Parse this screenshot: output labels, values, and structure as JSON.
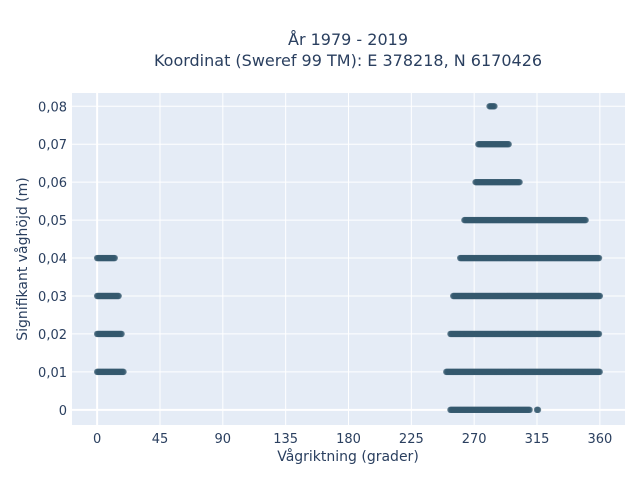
{
  "chart_data": {
    "type": "scatter",
    "title_line1": "År 1979 - 2019",
    "title_line2": "Koordinat (Sweref 99 TM): E 378218, N 6170426",
    "xlabel": "Vågriktning (grader)",
    "ylabel": "Signifikant våghöjd (m)",
    "xlim": [
      -18,
      378
    ],
    "ylim": [
      -0.004,
      0.0835
    ],
    "xticks": [
      0,
      45,
      90,
      135,
      180,
      225,
      270,
      315,
      360
    ],
    "xtick_labels": [
      "0",
      "45",
      "90",
      "135",
      "180",
      "225",
      "270",
      "315",
      "360"
    ],
    "yticks": [
      0,
      0.01,
      0.02,
      0.03,
      0.04,
      0.05,
      0.06,
      0.07,
      0.08
    ],
    "ytick_labels": [
      "0",
      "0,01",
      "0,02",
      "0,03",
      "0,04",
      "0,05",
      "0,06",
      "0,07",
      "0,08"
    ],
    "grid": true,
    "marker_color": "#34586e",
    "plot_bg": "#e5ecf6",
    "point_bands": [
      {
        "y": 0.0,
        "x_ranges": [
          [
            253,
            310
          ],
          [
            315,
            316
          ]
        ]
      },
      {
        "y": 0.01,
        "x_ranges": [
          [
            0,
            19
          ],
          [
            250,
            360
          ]
        ]
      },
      {
        "y": 0.02,
        "x_ranges": [
          [
            0,
            18
          ],
          [
            253,
            360
          ]
        ]
      },
      {
        "y": 0.03,
        "x_ranges": [
          [
            0,
            16
          ],
          [
            255,
            360
          ]
        ]
      },
      {
        "y": 0.04,
        "x_ranges": [
          [
            0,
            13
          ],
          [
            260,
            360
          ]
        ]
      },
      {
        "y": 0.05,
        "x_ranges": [
          [
            263,
            350
          ]
        ]
      },
      {
        "y": 0.06,
        "x_ranges": [
          [
            271,
            303
          ]
        ]
      },
      {
        "y": 0.07,
        "x_ranges": [
          [
            273,
            295
          ]
        ]
      },
      {
        "y": 0.08,
        "x_ranges": [
          [
            281,
            285
          ]
        ]
      }
    ]
  }
}
